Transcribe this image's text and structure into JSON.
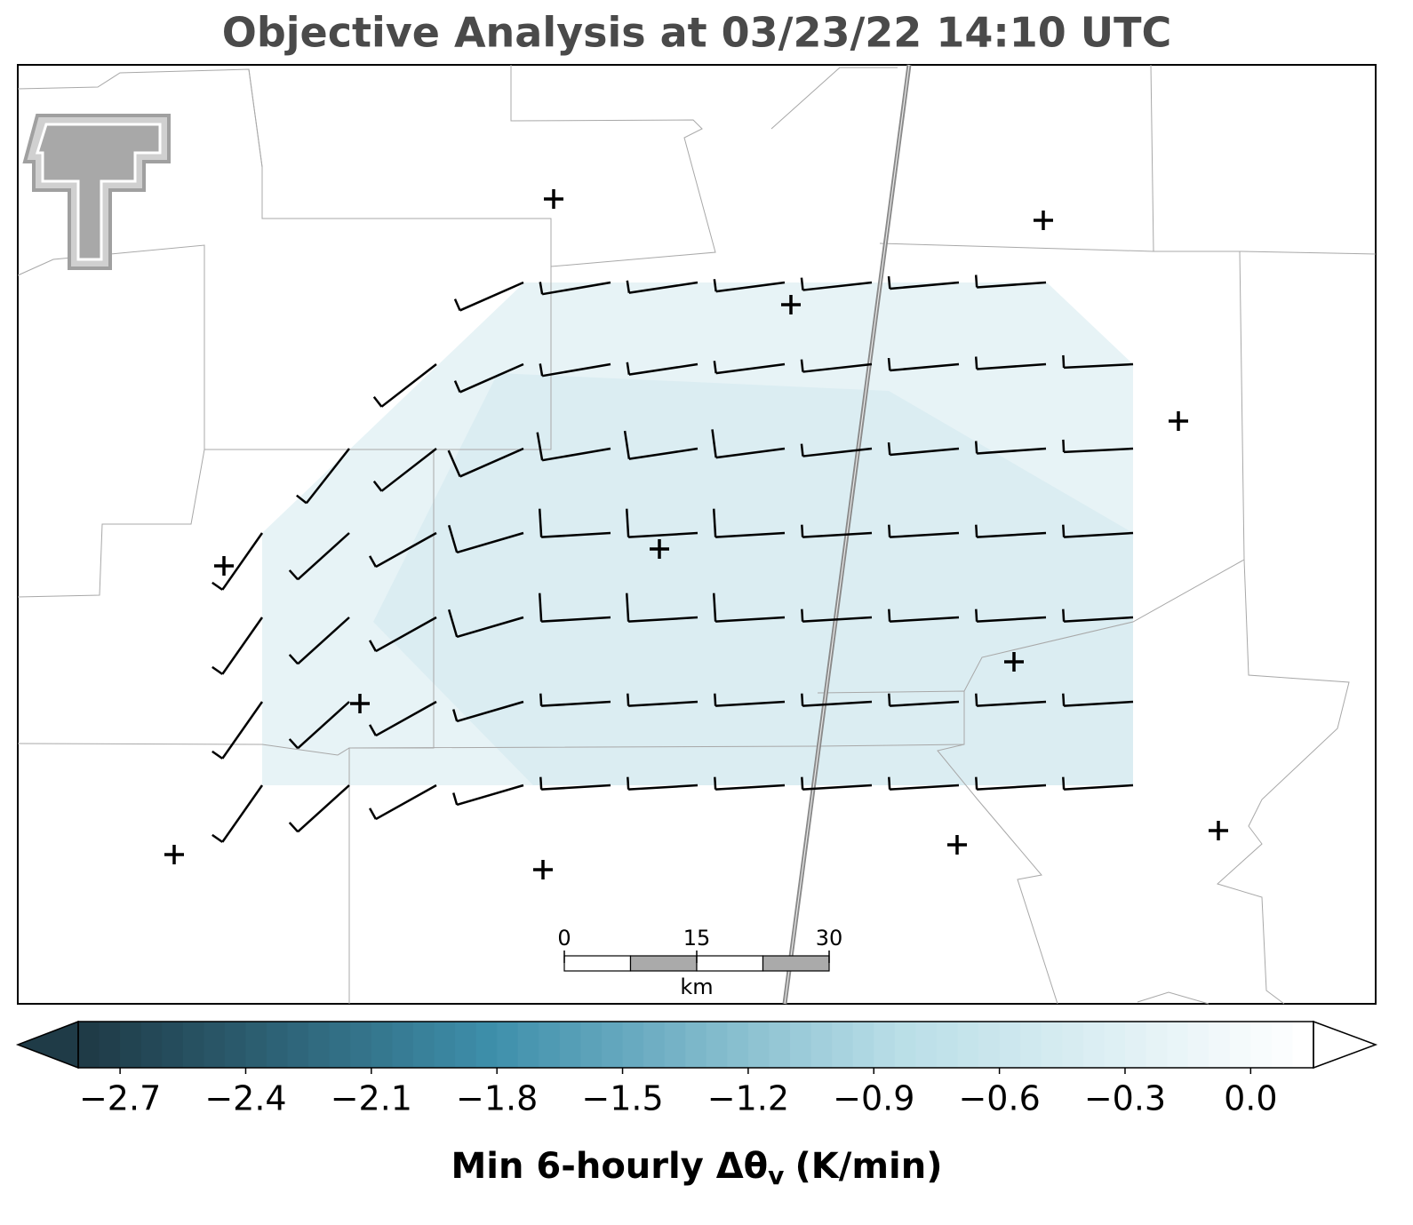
{
  "map": {
    "title": "Objective Analysis at 03/23/22 14:10 UTC",
    "scalebar": {
      "lim": [
        0,
        30
      ],
      "ticks": [
        0,
        15,
        30
      ],
      "unit": "km"
    },
    "colorbar": {
      "clim": [
        -2.8,
        0.15
      ],
      "colors": [
        "#1f3b47",
        "#3e8fab",
        "#b9dee7",
        "#ffffff"
      ],
      "ticks": [
        {
          "value": -2.7,
          "label": "−2.7"
        },
        {
          "value": -2.4,
          "label": "−2.4"
        },
        {
          "value": -2.1,
          "label": "−2.1"
        },
        {
          "value": -1.8,
          "label": "−1.8"
        },
        {
          "value": -1.5,
          "label": "−1.5"
        },
        {
          "value": -1.2,
          "label": "−1.2"
        },
        {
          "value": -0.9,
          "label": "−0.9"
        },
        {
          "value": -0.6,
          "label": "−0.6"
        },
        {
          "value": -0.3,
          "label": "−0.3"
        },
        {
          "value": 0,
          "label": "0.0"
        }
      ],
      "label": "Min 6-hourly Δθ",
      "label_sub": "v",
      "label_unit": "(K/min)"
    }
  }
}
